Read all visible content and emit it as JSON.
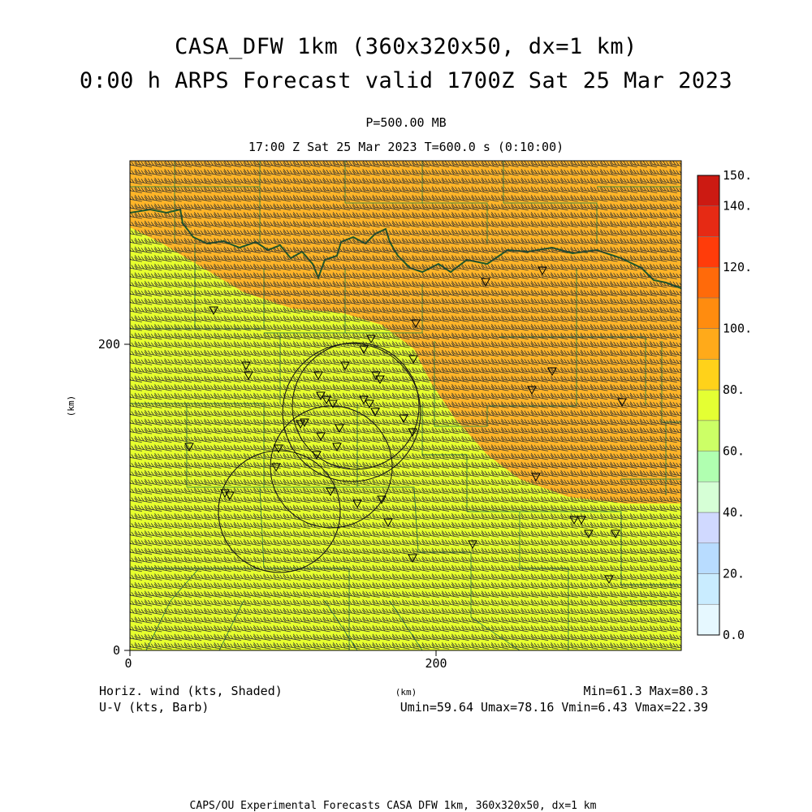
{
  "titles": {
    "line1": "CASA_DFW 1km (360x320x50, dx=1 km)",
    "line2": "0:00 h ARPS Forecast valid 1700Z Sat 25 Mar 2023",
    "level": "P=500.00 MB",
    "time": "17:00 Z Sat 25 Mar 2023    T=600.0 s (0:10:00)"
  },
  "axes": {
    "x_ticks": [
      0,
      200
    ],
    "y_ticks": [
      0,
      200
    ],
    "x_label": "(km)",
    "y_label": "(km)",
    "x_range": [
      0,
      360
    ],
    "y_range": [
      0,
      320
    ]
  },
  "colorbar": {
    "levels": [
      0,
      10,
      20,
      30,
      40,
      50,
      60,
      70,
      80,
      90,
      100,
      110,
      120,
      130,
      140,
      150
    ],
    "tick_labels": [
      "0.0",
      "20.",
      "40.",
      "60.",
      "80.",
      "100.",
      "120.",
      "140.",
      "150."
    ],
    "colors": [
      "#e6f8ff",
      "#c9ecff",
      "#b8dcff",
      "#d0d9ff",
      "#d6ffd6",
      "#b0ffb0",
      "#ccff66",
      "#e4ff33",
      "#ffd21a",
      "#ffaa1a",
      "#ff8c0f",
      "#ff6a0a",
      "#ff3c0a",
      "#e62a14",
      "#cc1a12",
      "#aa0a0a"
    ]
  },
  "legend": {
    "shade_label": "Horiz. wind (kts, Shaded)",
    "barb_label": "U-V (kts, Barb)",
    "minmax": "Min=61.3 Max=80.3",
    "uv_stats": "Umin=59.64 Umax=78.16 Vmin=6.43 Vmax=22.39"
  },
  "map": {
    "field_min": 61.3,
    "field_max": 80.3,
    "colors": {
      "low": "#e6ff2e",
      "high": "#ffb428",
      "county": "#3f8a3f",
      "river": "#1e5a2a",
      "radar": "#000000"
    }
  },
  "footer": "CAPS/OU Experimental Forecasts  CASA DFW 1km, 360x320x50, dx=1 km"
}
